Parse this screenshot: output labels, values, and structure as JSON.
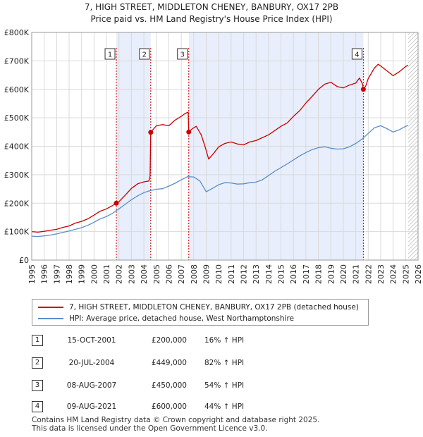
{
  "title": {
    "line1": "7, HIGH STREET, MIDDLETON CHENEY, BANBURY, OX17 2PB",
    "line2": "Price paid vs. HM Land Registry's House Price Index (HPI)"
  },
  "colors": {
    "price": "#cc0000",
    "hpi": "#5b8ec7",
    "shade": "#e8eefb",
    "grid": "#d9d9d9",
    "marker_line": "#cc0000"
  },
  "chart_data": {
    "type": "line",
    "x_range": [
      1995,
      2026
    ],
    "y_range": [
      0,
      800000
    ],
    "x_ticks": [
      "1995",
      "1996",
      "1997",
      "1998",
      "1999",
      "2000",
      "2001",
      "2002",
      "2003",
      "2004",
      "2005",
      "2006",
      "2007",
      "2008",
      "2009",
      "2010",
      "2011",
      "2012",
      "2013",
      "2014",
      "2015",
      "2016",
      "2017",
      "2018",
      "2019",
      "2020",
      "2021",
      "2022",
      "2023",
      "2024",
      "2025",
      "2026"
    ],
    "y_ticks": [
      {
        "value": 0,
        "label": "£0"
      },
      {
        "value": 100000,
        "label": "£100K"
      },
      {
        "value": 200000,
        "label": "£200K"
      },
      {
        "value": 300000,
        "label": "£300K"
      },
      {
        "value": 400000,
        "label": "£400K"
      },
      {
        "value": 500000,
        "label": "£500K"
      },
      {
        "value": 600000,
        "label": "£600K"
      },
      {
        "value": 700000,
        "label": "£700K"
      },
      {
        "value": 800000,
        "label": "£800K"
      }
    ],
    "shaded_spans": [
      [
        2001.79,
        2004.55
      ],
      [
        2007.6,
        2021.61
      ]
    ],
    "hatched_from": 2025.2,
    "series": [
      {
        "name": "7, HIGH STREET, MIDDLETON CHENEY, BANBURY, OX17 2PB (detached house)",
        "color": "#cc0000",
        "points": [
          [
            1995,
            100000
          ],
          [
            1995.5,
            98000
          ],
          [
            1996,
            101000
          ],
          [
            1996.5,
            105000
          ],
          [
            1997,
            108000
          ],
          [
            1997.5,
            115000
          ],
          [
            1998,
            120000
          ],
          [
            1998.5,
            130000
          ],
          [
            1999,
            136000
          ],
          [
            1999.5,
            145000
          ],
          [
            2000,
            158000
          ],
          [
            2000.5,
            172000
          ],
          [
            2001,
            180000
          ],
          [
            2001.5,
            192000
          ],
          [
            2001.79,
            200000
          ],
          [
            2002,
            205000
          ],
          [
            2002.5,
            228000
          ],
          [
            2003,
            252000
          ],
          [
            2003.5,
            268000
          ],
          [
            2004,
            275000
          ],
          [
            2004.4,
            278000
          ],
          [
            2004.5,
            295000
          ],
          [
            2004.55,
            449000
          ],
          [
            2004.8,
            462000
          ],
          [
            2005,
            472000
          ],
          [
            2005.5,
            476000
          ],
          [
            2006,
            472000
          ],
          [
            2006.5,
            492000
          ],
          [
            2007,
            505000
          ],
          [
            2007.3,
            515000
          ],
          [
            2007.55,
            520000
          ],
          [
            2007.6,
            450000
          ],
          [
            2007.9,
            462000
          ],
          [
            2008.2,
            470000
          ],
          [
            2008.6,
            440000
          ],
          [
            2008.9,
            400000
          ],
          [
            2009.2,
            355000
          ],
          [
            2009.6,
            375000
          ],
          [
            2010,
            398000
          ],
          [
            2010.5,
            410000
          ],
          [
            2011,
            415000
          ],
          [
            2011.5,
            408000
          ],
          [
            2012,
            405000
          ],
          [
            2012.5,
            415000
          ],
          [
            2013,
            420000
          ],
          [
            2013.5,
            430000
          ],
          [
            2014,
            440000
          ],
          [
            2014.5,
            455000
          ],
          [
            2015,
            470000
          ],
          [
            2015.5,
            482000
          ],
          [
            2016,
            505000
          ],
          [
            2016.5,
            525000
          ],
          [
            2017,
            552000
          ],
          [
            2017.5,
            575000
          ],
          [
            2018,
            600000
          ],
          [
            2018.5,
            618000
          ],
          [
            2019,
            625000
          ],
          [
            2019.5,
            610000
          ],
          [
            2020,
            605000
          ],
          [
            2020.5,
            615000
          ],
          [
            2021,
            622000
          ],
          [
            2021.3,
            640000
          ],
          [
            2021.55,
            618000
          ],
          [
            2021.61,
            600000
          ],
          [
            2021.8,
            612000
          ],
          [
            2022,
            638000
          ],
          [
            2022.5,
            675000
          ],
          [
            2022.8,
            688000
          ],
          [
            2023,
            682000
          ],
          [
            2023.5,
            665000
          ],
          [
            2024,
            648000
          ],
          [
            2024.5,
            662000
          ],
          [
            2025,
            680000
          ],
          [
            2025.2,
            685000
          ]
        ]
      },
      {
        "name": "HPI: Average price, detached house, West Northamptonshire",
        "color": "#5b8ec7",
        "points": [
          [
            1995,
            84000
          ],
          [
            1995.5,
            83000
          ],
          [
            1996,
            85000
          ],
          [
            1996.5,
            88000
          ],
          [
            1997,
            92000
          ],
          [
            1997.5,
            97000
          ],
          [
            1998,
            102000
          ],
          [
            1998.5,
            108000
          ],
          [
            1999,
            114000
          ],
          [
            1999.5,
            122000
          ],
          [
            2000,
            133000
          ],
          [
            2000.5,
            145000
          ],
          [
            2001,
            153000
          ],
          [
            2001.5,
            165000
          ],
          [
            2002,
            180000
          ],
          [
            2002.5,
            196000
          ],
          [
            2003,
            212000
          ],
          [
            2003.5,
            226000
          ],
          [
            2004,
            237000
          ],
          [
            2004.5,
            244000
          ],
          [
            2005,
            249000
          ],
          [
            2005.5,
            251000
          ],
          [
            2006,
            260000
          ],
          [
            2006.5,
            270000
          ],
          [
            2007,
            282000
          ],
          [
            2007.5,
            293000
          ],
          [
            2008,
            292000
          ],
          [
            2008.5,
            278000
          ],
          [
            2009,
            240000
          ],
          [
            2009.5,
            252000
          ],
          [
            2010,
            265000
          ],
          [
            2010.5,
            272000
          ],
          [
            2011,
            271000
          ],
          [
            2011.5,
            267000
          ],
          [
            2012,
            268000
          ],
          [
            2012.5,
            272000
          ],
          [
            2013,
            274000
          ],
          [
            2013.5,
            282000
          ],
          [
            2014,
            297000
          ],
          [
            2014.5,
            312000
          ],
          [
            2015,
            325000
          ],
          [
            2015.5,
            338000
          ],
          [
            2016,
            352000
          ],
          [
            2016.5,
            366000
          ],
          [
            2017,
            378000
          ],
          [
            2017.5,
            388000
          ],
          [
            2018,
            395000
          ],
          [
            2018.5,
            398000
          ],
          [
            2019,
            393000
          ],
          [
            2019.5,
            390000
          ],
          [
            2020,
            391000
          ],
          [
            2020.5,
            398000
          ],
          [
            2021,
            410000
          ],
          [
            2021.5,
            425000
          ],
          [
            2022,
            445000
          ],
          [
            2022.5,
            465000
          ],
          [
            2023,
            472000
          ],
          [
            2023.5,
            462000
          ],
          [
            2024,
            450000
          ],
          [
            2024.5,
            458000
          ],
          [
            2025,
            470000
          ],
          [
            2025.2,
            473000
          ]
        ]
      }
    ],
    "markers": [
      {
        "num": "1",
        "x": 2001.79,
        "y": 200000
      },
      {
        "num": "2",
        "x": 2004.55,
        "y": 449000
      },
      {
        "num": "3",
        "x": 2007.6,
        "y": 450000
      },
      {
        "num": "4",
        "x": 2021.61,
        "y": 600000
      }
    ]
  },
  "legend": {
    "price_label": "7, HIGH STREET, MIDDLETON CHENEY, BANBURY, OX17 2PB (detached house)",
    "hpi_label": "HPI: Average price, detached house, West Northamptonshire"
  },
  "sales": [
    {
      "num": "1",
      "date": "15-OCT-2001",
      "price": "£200,000",
      "hpi": "16% ↑ HPI"
    },
    {
      "num": "2",
      "date": "20-JUL-2004",
      "price": "£449,000",
      "hpi": "82% ↑ HPI"
    },
    {
      "num": "3",
      "date": "08-AUG-2007",
      "price": "£450,000",
      "hpi": "54% ↑ HPI"
    },
    {
      "num": "4",
      "date": "09-AUG-2021",
      "price": "£600,000",
      "hpi": "44% ↑ HPI"
    }
  ],
  "footer": {
    "line1": "Contains HM Land Registry data © Crown copyright and database right 2025.",
    "line2": "This data is licensed under the Open Government Licence v3.0."
  }
}
